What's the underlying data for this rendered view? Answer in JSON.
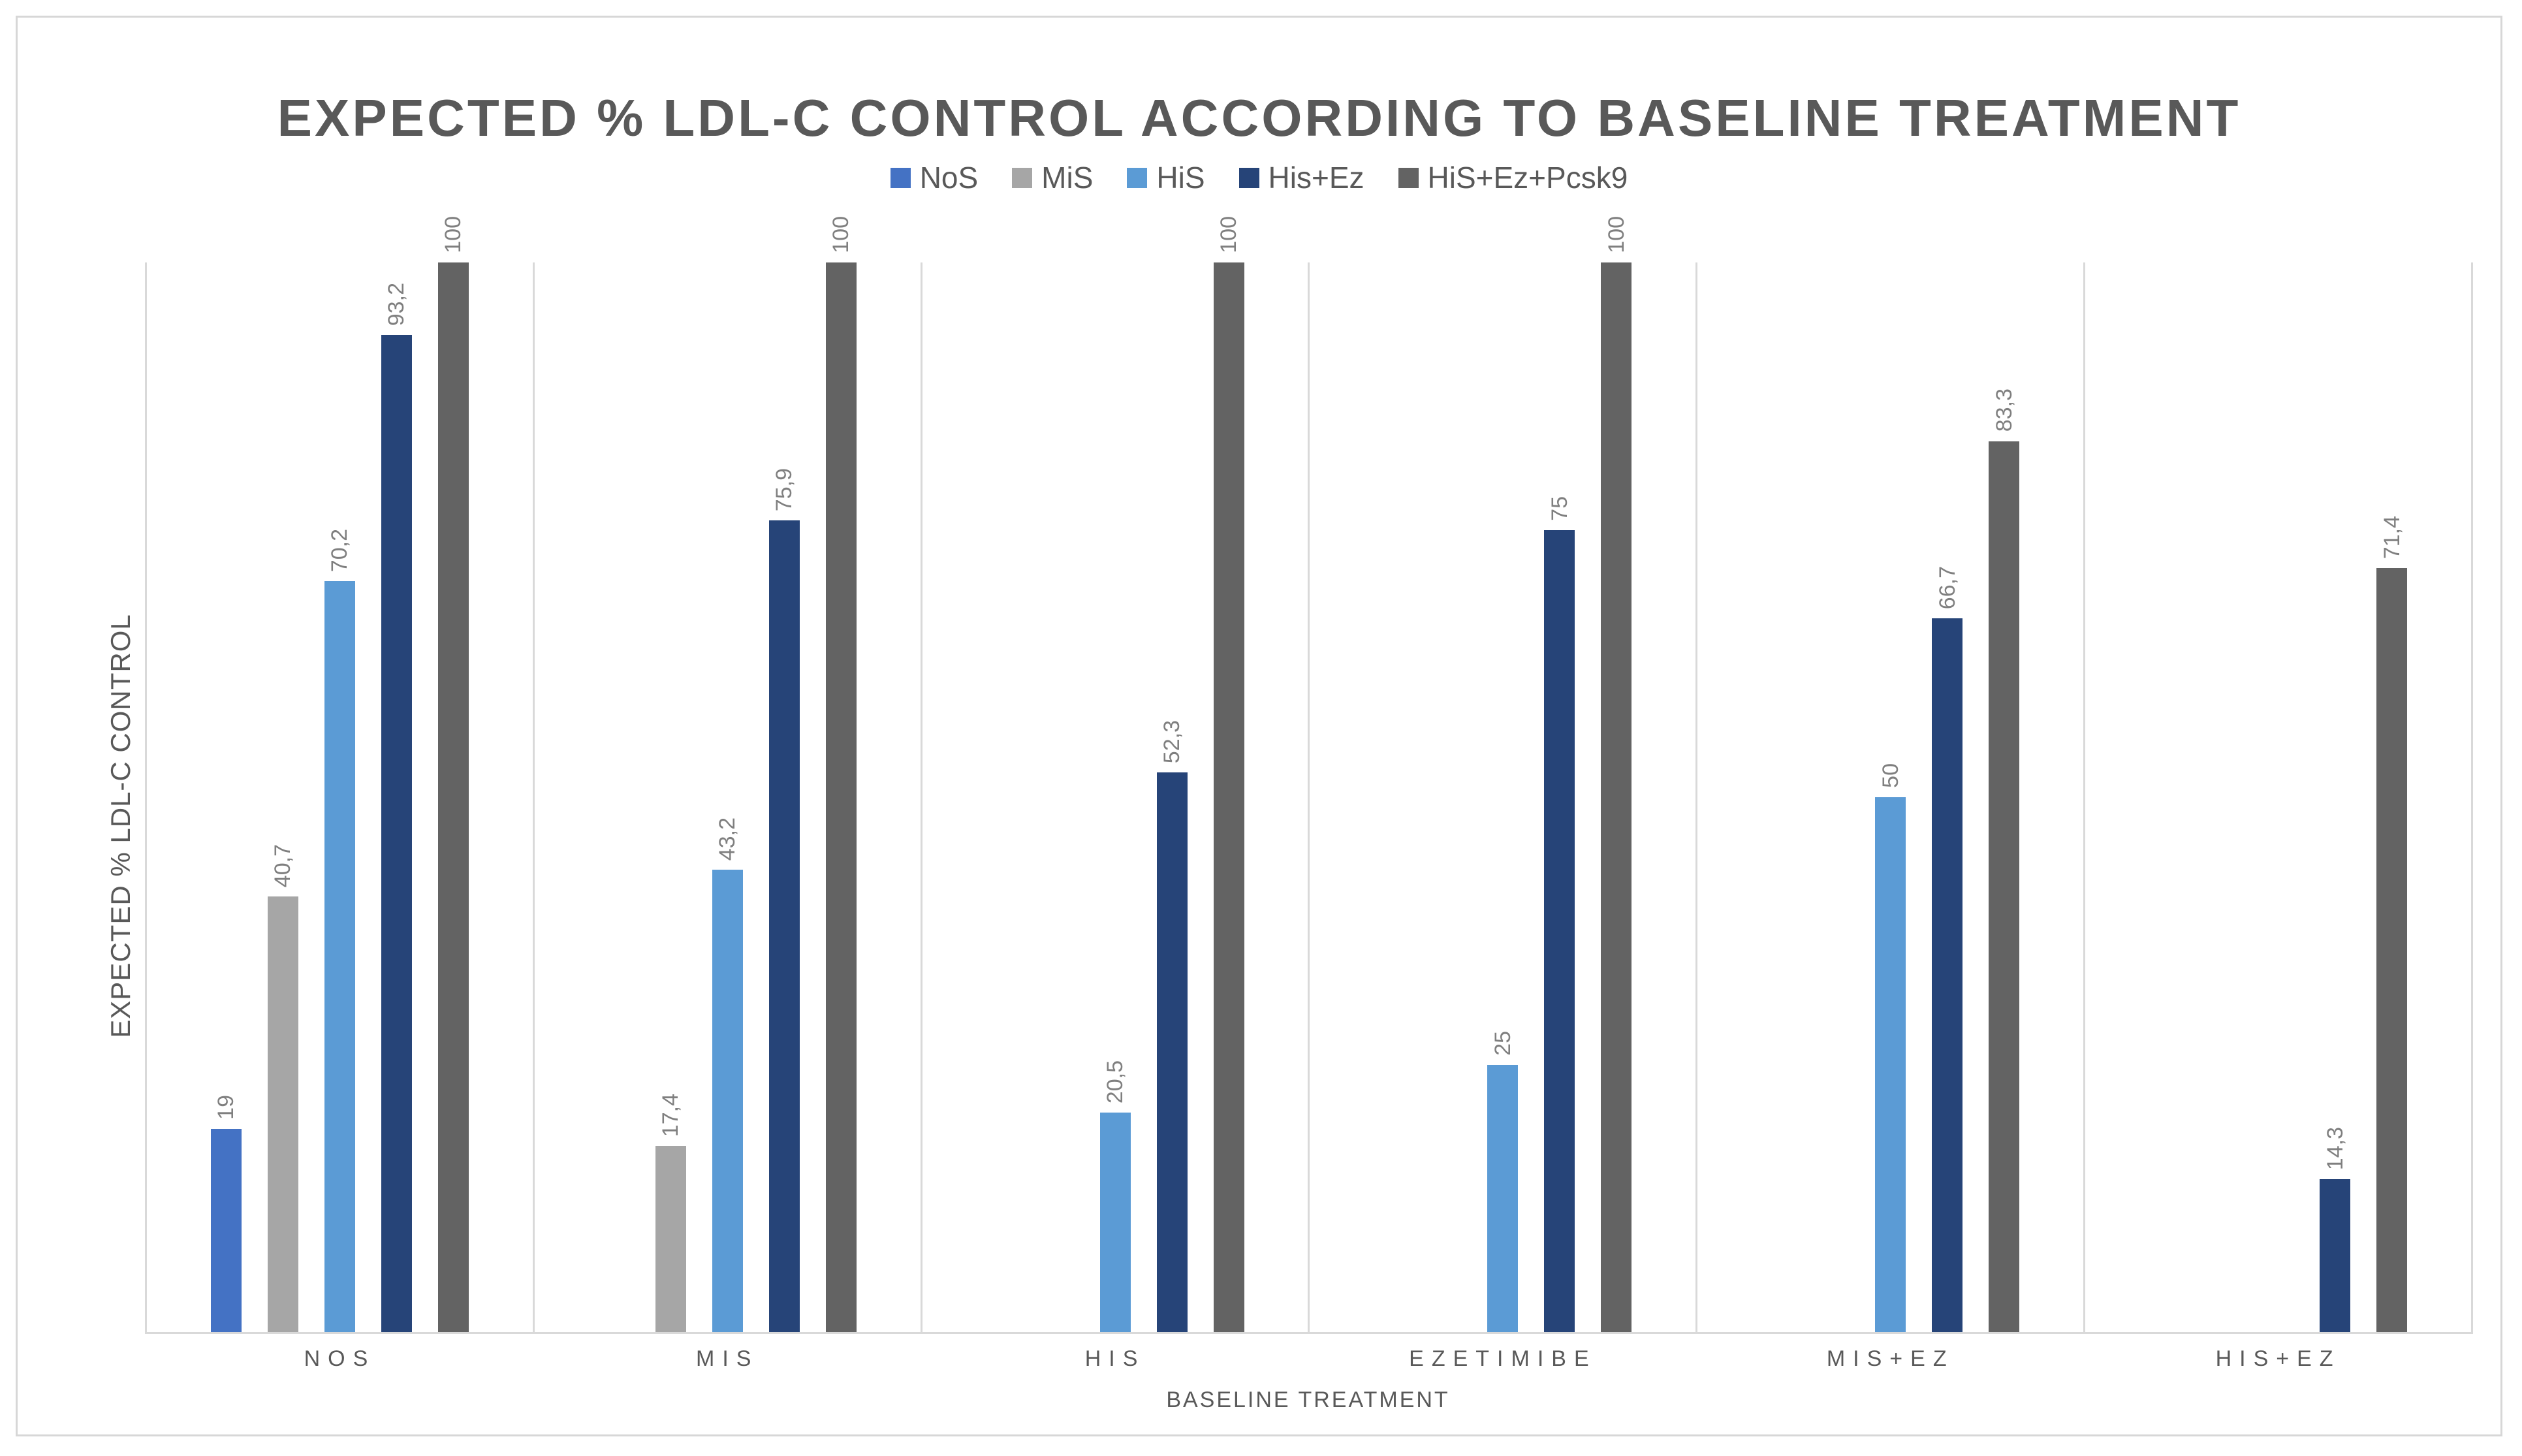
{
  "chart_data": {
    "type": "bar",
    "title": "EXPECTED % LDL-C CONTROL ACCORDING TO BASELINE TREATMENT",
    "xlabel": "BASELINE TREATMENT",
    "ylabel": "EXPECTED % LDL-C CONTROL",
    "ylim": [
      0,
      100
    ],
    "grid": "vertical-category-separators",
    "legend_position": "top",
    "value_label_rotation": -90,
    "decimal_separator": ",",
    "categories": [
      "NOS",
      "MIS",
      "HIS",
      "EZETIMIBE",
      "MIS+EZ",
      "HIS+EZ"
    ],
    "legend_entries": [
      "NoS",
      "MiS",
      "HiS",
      "His+Ez",
      "HiS+Ez+Pcsk9"
    ],
    "series": [
      {
        "name": "NoS",
        "color": "#4472C4",
        "values": [
          19,
          null,
          null,
          null,
          null,
          null
        ],
        "labels": [
          "19",
          "",
          "",
          "",
          "",
          ""
        ]
      },
      {
        "name": "MiS",
        "color": "#A6A6A6",
        "values": [
          40.7,
          17.4,
          null,
          null,
          null,
          null
        ],
        "labels": [
          "40,7",
          "17,4",
          "",
          "",
          "",
          ""
        ]
      },
      {
        "name": "HiS",
        "color": "#5B9BD5",
        "values": [
          70.2,
          43.2,
          20.5,
          25,
          50,
          null
        ],
        "labels": [
          "70,2",
          "43,2",
          "20,5",
          "25",
          "50",
          ""
        ]
      },
      {
        "name": "His+Ez",
        "color": "#264478",
        "values": [
          93.2,
          75.9,
          52.3,
          75,
          66.7,
          14.3
        ],
        "labels": [
          "93,2",
          "75,9",
          "52,3",
          "75",
          "66,7",
          "14,3"
        ]
      },
      {
        "name": "HiS+Ez+Pcsk9",
        "color": "#636363",
        "values": [
          100,
          100,
          100,
          100,
          83.3,
          71.4
        ],
        "labels": [
          "100",
          "100",
          "100",
          "100",
          "83,3",
          "71,4"
        ]
      }
    ]
  },
  "colors": {
    "frame_border": "#D7D7D7",
    "axis_line": "#D9D9D9",
    "title_text": "#595959",
    "axis_text": "#595959",
    "value_label_text": "#7F7F7F",
    "background": "#FFFFFF"
  }
}
